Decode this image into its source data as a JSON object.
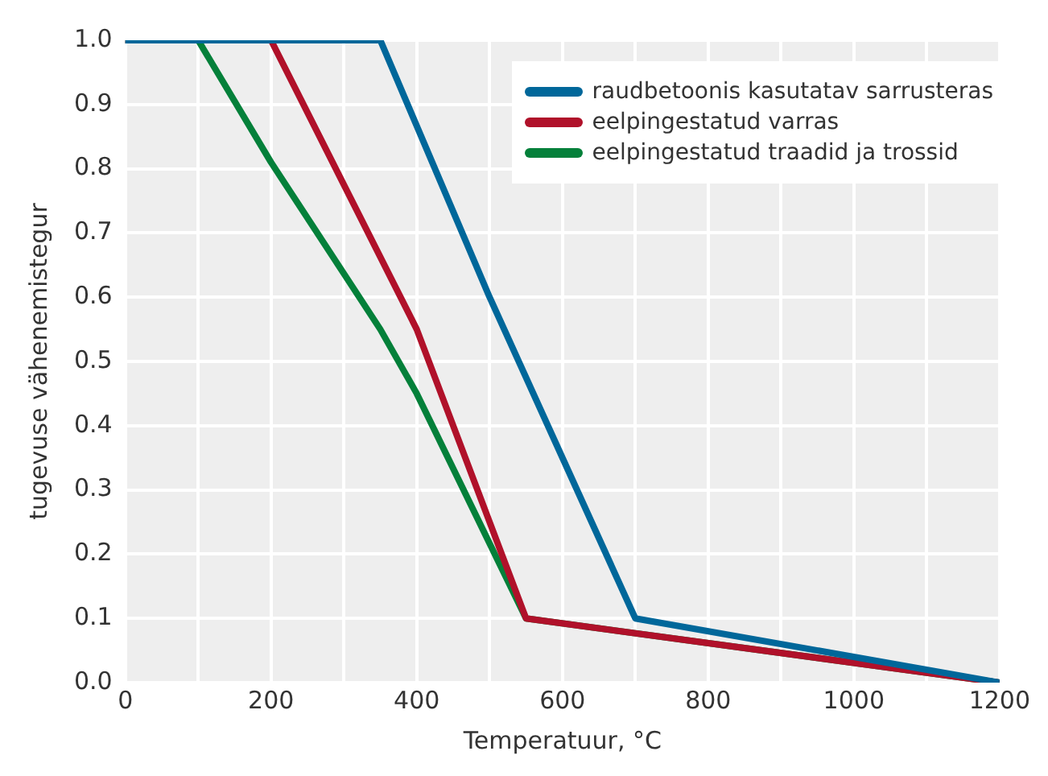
{
  "chart_data": {
    "type": "line",
    "xlabel": "Temperatuur, °C",
    "ylabel": "tugevuse vähenemistegur",
    "xlim": [
      0,
      1200
    ],
    "xticks": [
      0,
      {
        "value": 100,
        "label": null
      },
      200,
      {
        "value": 300,
        "label": null
      },
      400,
      {
        "value": 500,
        "label": null
      },
      600,
      {
        "value": 700,
        "label": null
      },
      800,
      {
        "value": 900,
        "label": null
      },
      1000,
      {
        "value": 1100,
        "label": null
      },
      1200
    ],
    "ylim": [
      0,
      1
    ],
    "yticks": [
      {
        "value": 0,
        "label": "0.0"
      },
      0.1,
      0.2,
      0.3,
      0.4,
      0.5,
      0.6,
      0.7,
      0.8,
      0.9,
      {
        "value": 1,
        "label": "1.0"
      }
    ],
    "grid": true,
    "legend": "top right",
    "marker": "none",
    "line_style": "solid",
    "series": [
      {
        "name": "raudbetoonis kasutatav sarrusteras",
        "color": "#00679a",
        "x": [
          0,
          350,
          500,
          700,
          1200
        ],
        "values": [
          1,
          1,
          0.6,
          0.1,
          0
        ]
      },
      {
        "name": "eelpingestatud varras",
        "color": "#b0112a",
        "x": [
          0,
          200,
          400,
          550,
          1200
        ],
        "values": [
          1,
          1,
          0.55,
          0.1,
          0
        ]
      },
      {
        "name": "eelpingestatud traadid ja trossid",
        "color": "#04803a",
        "x": [
          0,
          100,
          200,
          350,
          400,
          550,
          1200
        ],
        "values": [
          1,
          1,
          0.81,
          0.55,
          0.45,
          0.1,
          0
        ]
      }
    ]
  }
}
